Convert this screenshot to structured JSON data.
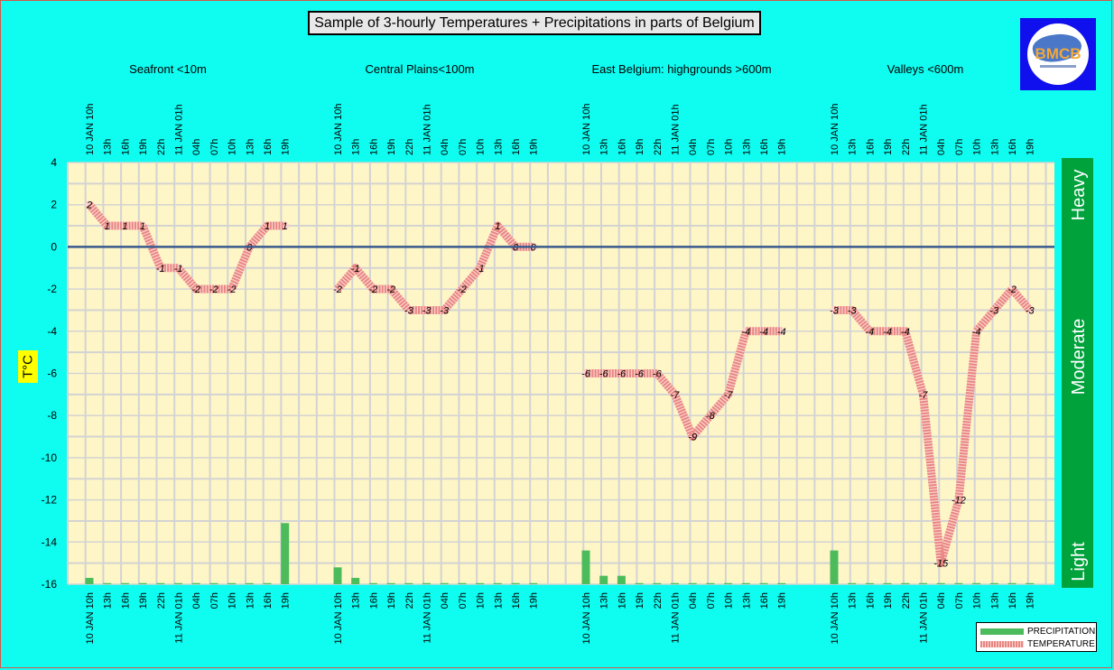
{
  "chart_data": {
    "type": "line",
    "title": "Sample of 3-hourly Temperatures + Precipitations in parts of Belgium",
    "ylabel": "T°C",
    "ylim": [
      -16,
      4
    ],
    "y_ticks": [
      4,
      2,
      0,
      -2,
      -4,
      -6,
      -8,
      -10,
      -12,
      -14,
      -16
    ],
    "grid": true,
    "legend_position": "bottom-right",
    "x_tick_labels": [
      "10 JAN 10h",
      "13h",
      "16h",
      "19h",
      "22h",
      "11 JAN 01h",
      "04h",
      "07h",
      "10h",
      "13h",
      "16h",
      "19h"
    ],
    "precipitation_scale": [
      "Light",
      "Moderate",
      "Heavy"
    ],
    "regions": [
      {
        "name": "Seafront <10m",
        "temperature": [
          2,
          1,
          1,
          1,
          -1,
          -1,
          -2,
          -2,
          -2,
          0,
          1,
          1
        ],
        "precipitation": [
          -15.7,
          -16,
          -16,
          -16,
          -16,
          -16,
          -16,
          -16,
          -16,
          -16,
          -16,
          -13.1
        ]
      },
      {
        "name": "Central Plains<100m",
        "temperature": [
          -2,
          -1,
          -2,
          -2,
          -3,
          -3,
          -3,
          -2,
          -1,
          1,
          0,
          0
        ],
        "precipitation": [
          -15.2,
          -15.7,
          -16,
          -16,
          -16,
          -16,
          -16,
          -16,
          -16,
          -16,
          -16,
          -16
        ]
      },
      {
        "name": "East Belgium:     highgrounds >600m",
        "temperature": [
          -6,
          -6,
          -6,
          -6,
          -6,
          -7,
          -9,
          -8,
          -7,
          -4,
          -4,
          -4
        ],
        "precipitation": [
          -14.4,
          -15.6,
          -15.6,
          -16,
          -16,
          -16,
          -16,
          -16,
          -16,
          -16,
          -16,
          -16
        ]
      },
      {
        "name": "Valleys <600m",
        "temperature": [
          -3,
          -3,
          -4,
          -4,
          -4,
          -7,
          -15,
          -12,
          -4,
          -3,
          -2,
          -3
        ],
        "precipitation": [
          -14.4,
          -16,
          -16,
          -16,
          -16,
          -16,
          -16,
          -16,
          -16,
          -16,
          -16,
          -16
        ]
      }
    ],
    "series": [
      {
        "name": "PRECIPITATION"
      },
      {
        "name": "TEMPERATURE"
      }
    ],
    "colors": {
      "plot_bg": "#fef6c6",
      "grid": "#d3d3d3",
      "zero_line": "#3a5a8c",
      "precip": "#4cbb5c",
      "temp": "#e98682",
      "band": "#00a23c"
    }
  }
}
